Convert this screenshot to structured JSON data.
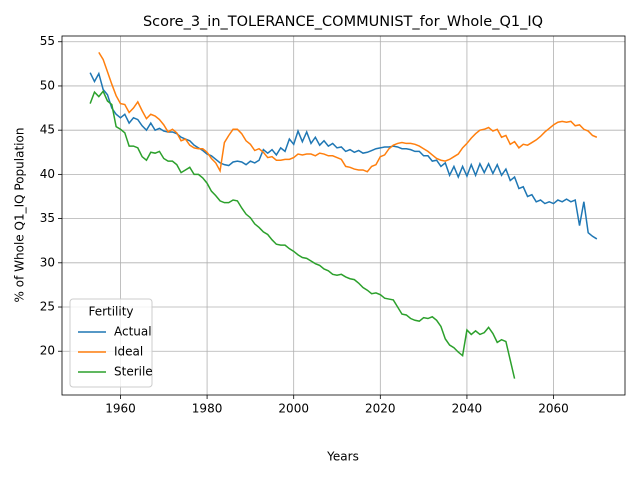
{
  "chart_data": {
    "type": "line",
    "title": "Score_3_in_TOLERANCE_COMMUNIST_for_Whole_Q1_IQ",
    "xlabel": "Years",
    "ylabel": "% of Whole Q1_IQ Population",
    "legend_title": "Fertility",
    "legend": "lower left",
    "grid": true,
    "xlim": [
      1946.5,
      2076.5
    ],
    "ylim": [
      15.05,
      55.65
    ],
    "xticks": [
      1960,
      1980,
      2000,
      2020,
      2040,
      2060
    ],
    "yticks": [
      20,
      25,
      30,
      35,
      40,
      45,
      50,
      55
    ],
    "x": [
      1953,
      1954,
      1955,
      1956,
      1957,
      1958,
      1959,
      1960,
      1961,
      1962,
      1963,
      1964,
      1965,
      1966,
      1967,
      1968,
      1969,
      1970,
      1971,
      1972,
      1973,
      1974,
      1975,
      1976,
      1977,
      1978,
      1979,
      1980,
      1981,
      1982,
      1983,
      1984,
      1985,
      1986,
      1987,
      1988,
      1989,
      1990,
      1991,
      1992,
      1993,
      1994,
      1995,
      1996,
      1997,
      1998,
      1999,
      2000,
      2001,
      2002,
      2003,
      2004,
      2005,
      2006,
      2007,
      2008,
      2009,
      2010,
      2011,
      2012,
      2013,
      2014,
      2015,
      2016,
      2017,
      2018,
      2019,
      2020,
      2021,
      2022,
      2023,
      2024,
      2025,
      2026,
      2027,
      2028,
      2029,
      2030,
      2031,
      2032,
      2033,
      2034,
      2035,
      2036,
      2037,
      2038,
      2039,
      2040,
      2041,
      2042,
      2043,
      2044,
      2045,
      2046,
      2047,
      2048,
      2049,
      2050,
      2051,
      2052,
      2053,
      2054,
      2055,
      2056,
      2057,
      2058,
      2059,
      2060,
      2061,
      2062,
      2063,
      2064,
      2065,
      2066,
      2067,
      2068,
      2069,
      2070
    ],
    "series": [
      {
        "name": "Actual",
        "color": "#1f77b4",
        "values": [
          51.5,
          50.5,
          51.4,
          49.6,
          49.0,
          47.5,
          46.8,
          46.4,
          46.8,
          45.8,
          46.4,
          46.2,
          45.5,
          45.0,
          45.8,
          45.0,
          45.2,
          44.9,
          44.8,
          44.8,
          44.6,
          44.2,
          44.0,
          43.8,
          43.3,
          43.0,
          42.7,
          42.3,
          42.1,
          41.7,
          41.3,
          41.1,
          41.0,
          41.4,
          41.5,
          41.4,
          41.1,
          41.5,
          41.3,
          41.6,
          42.8,
          42.4,
          42.8,
          42.2,
          43.0,
          42.6,
          44.0,
          43.4,
          44.9,
          43.7,
          44.8,
          43.5,
          44.2,
          43.3,
          43.8,
          43.2,
          43.5,
          43.0,
          43.1,
          42.6,
          42.8,
          42.5,
          42.7,
          42.4,
          42.5,
          42.7,
          42.9,
          43.0,
          43.1,
          43.1,
          43.2,
          43.1,
          42.9,
          42.9,
          42.8,
          42.6,
          42.6,
          42.1,
          42.1,
          41.5,
          41.6,
          40.9,
          41.3,
          39.9,
          40.9,
          39.7,
          40.9,
          39.8,
          41.1,
          39.9,
          41.2,
          40.2,
          41.2,
          40.1,
          41.1,
          39.9,
          40.6,
          39.3,
          39.7,
          38.4,
          38.6,
          37.5,
          37.7,
          36.9,
          37.1,
          36.7,
          36.9,
          36.7,
          37.1,
          36.9,
          37.2,
          36.9,
          37.1,
          34.2,
          36.9,
          33.4,
          33.0,
          32.7
        ]
      },
      {
        "name": "Ideal",
        "color": "#ff7f0e",
        "values": [
          null,
          null,
          53.8,
          53.0,
          51.6,
          50.2,
          48.9,
          48.0,
          47.9,
          47.0,
          47.5,
          48.2,
          47.2,
          46.3,
          46.8,
          46.6,
          46.2,
          45.6,
          44.8,
          45.1,
          44.7,
          43.8,
          44.0,
          43.3,
          43.0,
          42.9,
          42.9,
          42.5,
          41.8,
          41.3,
          40.4,
          43.6,
          44.4,
          45.1,
          45.1,
          44.6,
          43.8,
          43.4,
          42.7,
          42.9,
          42.5,
          41.9,
          42.0,
          41.6,
          41.6,
          41.7,
          41.7,
          41.9,
          42.3,
          42.2,
          42.3,
          42.3,
          42.1,
          42.4,
          42.3,
          42.1,
          42.1,
          41.9,
          41.7,
          40.9,
          40.8,
          40.6,
          40.5,
          40.5,
          40.3,
          40.9,
          41.1,
          42.0,
          42.2,
          42.9,
          43.3,
          43.5,
          43.6,
          43.5,
          43.5,
          43.4,
          43.2,
          42.9,
          42.6,
          42.2,
          41.8,
          41.6,
          41.5,
          41.7,
          42.0,
          42.3,
          43.0,
          43.5,
          44.1,
          44.6,
          45.0,
          45.1,
          45.3,
          44.9,
          45.1,
          44.2,
          44.4,
          43.4,
          43.7,
          43.0,
          43.4,
          43.3,
          43.6,
          43.9,
          44.3,
          44.8,
          45.2,
          45.6,
          45.9,
          46.0,
          45.9,
          46.0,
          45.5,
          45.6,
          45.1,
          44.9,
          44.4,
          44.2
        ]
      },
      {
        "name": "Sterile",
        "color": "#2ca02c",
        "values": [
          48.0,
          49.3,
          48.8,
          49.4,
          48.3,
          47.9,
          45.4,
          45.1,
          44.7,
          43.2,
          43.2,
          43.0,
          42.0,
          41.6,
          42.5,
          42.4,
          42.6,
          41.8,
          41.5,
          41.5,
          41.1,
          40.2,
          40.5,
          40.8,
          40.0,
          40.0,
          39.6,
          39.0,
          38.1,
          37.6,
          37.0,
          36.8,
          36.8,
          37.1,
          37.0,
          36.2,
          35.5,
          35.1,
          34.4,
          34.0,
          33.5,
          33.2,
          32.6,
          32.1,
          32.0,
          32.0,
          31.6,
          31.3,
          30.9,
          30.6,
          30.5,
          30.2,
          29.9,
          29.7,
          29.3,
          29.1,
          28.7,
          28.6,
          28.7,
          28.4,
          28.2,
          28.1,
          27.7,
          27.2,
          26.9,
          26.5,
          26.6,
          26.4,
          26.0,
          25.9,
          25.8,
          25.0,
          24.2,
          24.1,
          23.7,
          23.5,
          23.4,
          23.8,
          23.7,
          23.9,
          23.5,
          22.8,
          21.4,
          20.7,
          20.4,
          19.9,
          19.5,
          22.4,
          21.9,
          22.3,
          21.9,
          22.1,
          22.7,
          22.0,
          21.0,
          21.3,
          21.1,
          19.0,
          16.9,
          null,
          null,
          null,
          null,
          null,
          null,
          null,
          null,
          null,
          null,
          null,
          null,
          null,
          null,
          null,
          null,
          null,
          null,
          null
        ]
      }
    ]
  }
}
